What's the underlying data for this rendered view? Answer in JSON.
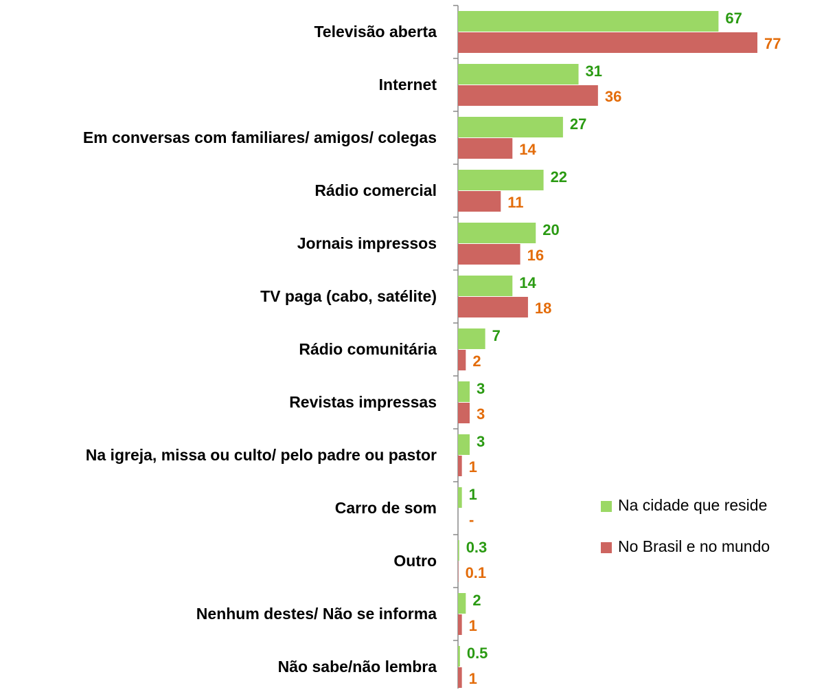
{
  "chart_data": {
    "type": "bar",
    "orientation": "horizontal",
    "categories": [
      "Televisão aberta",
      "Internet",
      "Em conversas com familiares/ amigos/ colegas",
      "Rádio comercial",
      "Jornais impressos",
      "TV paga (cabo, satélite)",
      "Rádio comunitária",
      "Revistas impressas",
      "Na igreja, missa ou culto/ pelo padre ou pastor",
      "Carro de som",
      "Outro",
      "Nenhum destes/ Não se informa",
      "Não sabe/não lembra"
    ],
    "series": [
      {
        "name": "Na cidade que reside",
        "color": "#9bd865",
        "label_color": "#2a9a12",
        "values": [
          67,
          31,
          27,
          22,
          20,
          14,
          7,
          3,
          3,
          1,
          0.3,
          2,
          0.5
        ]
      },
      {
        "name": "No Brasil e no mundo",
        "color": "#cd6560",
        "label_color": "#e36c0a",
        "values": [
          77,
          36,
          14,
          11,
          16,
          18,
          2,
          3,
          1,
          null,
          0.1,
          1,
          1
        ],
        "value_labels": [
          "77",
          "36",
          "14",
          "11",
          "16",
          "18",
          "2",
          "3",
          "1",
          "-",
          "0.1",
          "1",
          "1"
        ]
      }
    ],
    "xlim": [
      0,
      80
    ],
    "legend": "right"
  }
}
